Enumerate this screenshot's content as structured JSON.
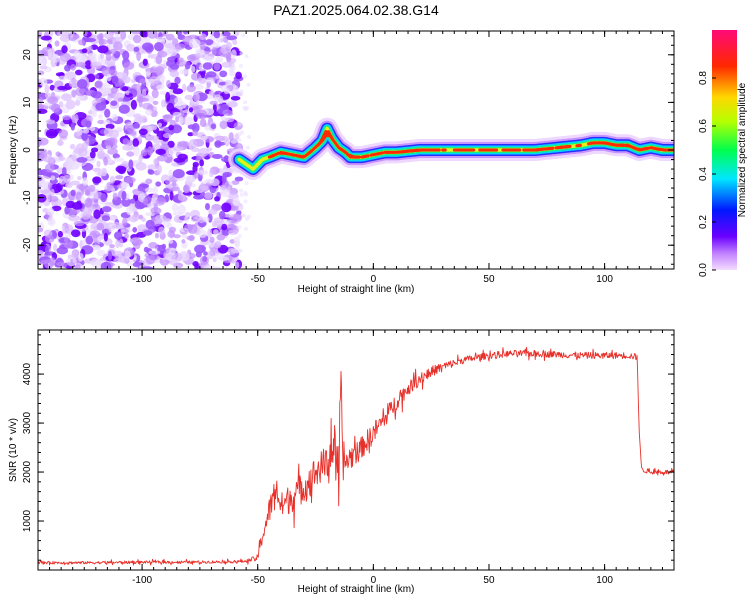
{
  "figure": {
    "title": "PAZ1.2025.064.02.38.G14"
  },
  "chart_data": [
    {
      "type": "heatmap",
      "xlabel": "Height of straight line (km)",
      "ylabel": "Frequency (Hz)",
      "xlim": [
        -145,
        130
      ],
      "ylim": [
        -25,
        25
      ],
      "x_ticks": [
        -100,
        -50,
        0,
        50,
        100
      ],
      "y_ticks": [
        -20,
        -10,
        0,
        10,
        20
      ],
      "grid": false,
      "colorbar": {
        "label": "Normalized spectral amplitude",
        "range": [
          0,
          1
        ],
        "ticks": [
          "0.0",
          "0.2",
          "0.4",
          "0.6",
          "0.8"
        ],
        "colormap": "hsv-like rainbow (purple→blue→cyan→green→yellow→red→magenta)"
      },
      "noise_region_x": [
        -145,
        -58
      ],
      "ridge": {
        "x": [
          -58,
          -55,
          -52,
          -50,
          -48,
          -45,
          -40,
          -35,
          -30,
          -25,
          -22,
          -20,
          -18,
          -15,
          -12,
          -10,
          -5,
          0,
          5,
          10,
          20,
          30,
          40,
          50,
          60,
          70,
          80,
          90,
          95,
          100,
          105,
          110,
          115,
          120,
          125,
          130
        ],
        "freq": [
          -2,
          -3,
          -4,
          -3,
          -2,
          -1.5,
          -0.5,
          -1,
          -1.5,
          0.5,
          2,
          4.5,
          2.5,
          0.5,
          -0.5,
          -1.5,
          -1.5,
          -1,
          -0.5,
          -0.5,
          0,
          0,
          0,
          0,
          0,
          0,
          0.5,
          1,
          1.5,
          1.5,
          1,
          1,
          0,
          0.5,
          0,
          0
        ],
        "amplitude_note": "peak ~1.0 along ridge for x > -20"
      },
      "scatter_colors": [
        "#7000ff",
        "#9a55ff",
        "#c08cff",
        "#ddbfff",
        "#ece0ff"
      ]
    },
    {
      "type": "line",
      "xlabel": "Height of straight line (km)",
      "ylabel": "SNR (10 * v/v)",
      "xlim": [
        -145,
        130
      ],
      "ylim": [
        0,
        4900
      ],
      "x_ticks": [
        -100,
        -50,
        0,
        50,
        100
      ],
      "y_ticks": [
        1000,
        2000,
        3000,
        4000
      ],
      "grid": false,
      "series": [
        {
          "color": "#e8302a",
          "x": [
            -145,
            -120,
            -100,
            -80,
            -60,
            -55,
            -50,
            -48,
            -45,
            -42,
            -40,
            -35,
            -30,
            -25,
            -20,
            -17,
            -15,
            -14,
            -13,
            -12,
            -10,
            -5,
            0,
            5,
            10,
            15,
            20,
            25,
            30,
            40,
            50,
            60,
            70,
            80,
            90,
            100,
            110,
            114,
            115,
            116,
            120,
            130
          ],
          "y": [
            150,
            150,
            160,
            160,
            170,
            180,
            250,
            700,
            1200,
            1700,
            1300,
            1500,
            1700,
            2000,
            2200,
            2600,
            1500,
            3800,
            2100,
            2200,
            2300,
            2500,
            2800,
            3100,
            3450,
            3700,
            3900,
            4050,
            4150,
            4300,
            4380,
            4420,
            4420,
            4400,
            4380,
            4380,
            4380,
            4350,
            2800,
            2050,
            2000,
            2000
          ],
          "noise_amp": [
            60,
            60,
            60,
            60,
            60,
            60,
            150,
            400,
            600,
            600,
            600,
            700,
            700,
            700,
            800,
            1200,
            900,
            900,
            600,
            600,
            600,
            500,
            500,
            400,
            400,
            300,
            300,
            250,
            200,
            150,
            150,
            150,
            150,
            150,
            150,
            150,
            150,
            150,
            0,
            120,
            100,
            100
          ]
        }
      ]
    }
  ]
}
